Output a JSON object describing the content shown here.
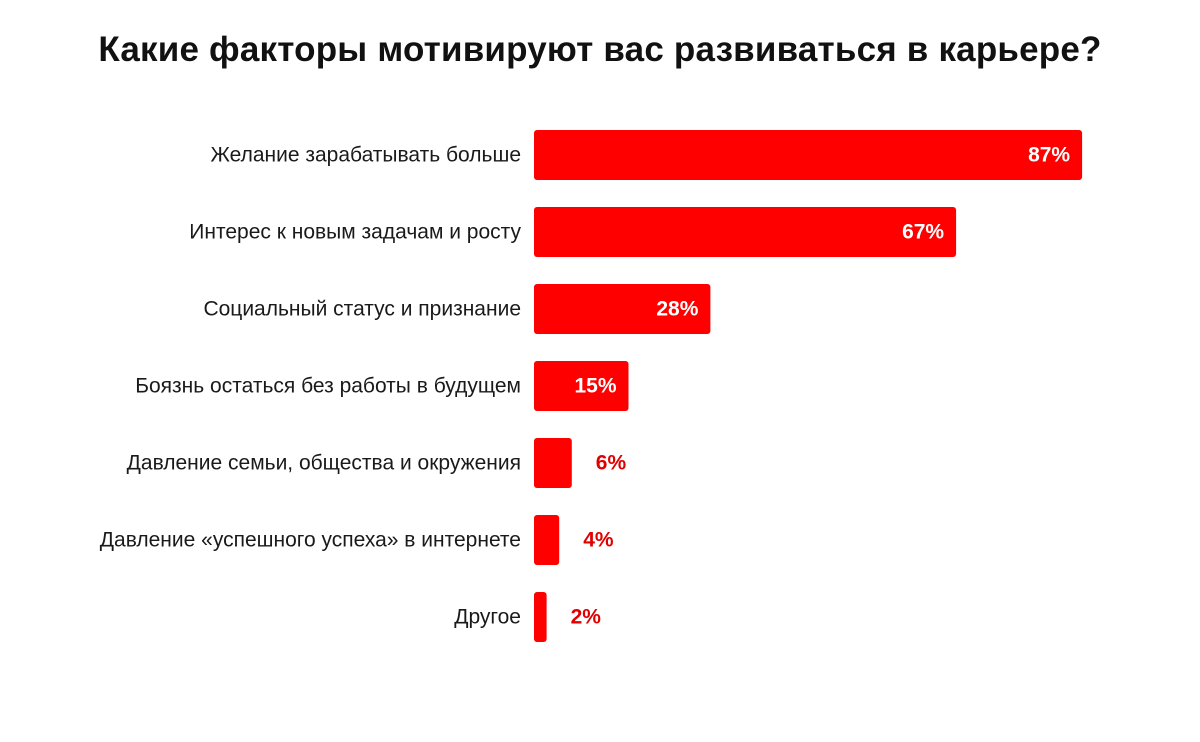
{
  "chart_data": {
    "type": "bar",
    "orientation": "horizontal",
    "title": "Какие факторы мотивируют вас развиваться в карьере?",
    "categories": [
      "Желание зарабатывать больше",
      "Интерес к новым задачам и росту",
      "Социальный статус и признание",
      "Боязнь остаться без работы в будущем",
      "Давление семьи, общества и окружения",
      "Давление «успешного успеха» в интернете",
      "Другое"
    ],
    "values": [
      87,
      67,
      28,
      15,
      6,
      4,
      2
    ],
    "value_labels": [
      "87%",
      "67%",
      "28%",
      "15%",
      "6%",
      "4%",
      "2%"
    ],
    "unit": "%",
    "xlim": [
      0,
      100
    ],
    "grid": false,
    "legend": "none",
    "colors": {
      "bar": "#ff0000",
      "label_inside": "#ffffff",
      "label_outside": "#e00000",
      "title": "#111111",
      "category_text": "#1a1a1a"
    }
  }
}
